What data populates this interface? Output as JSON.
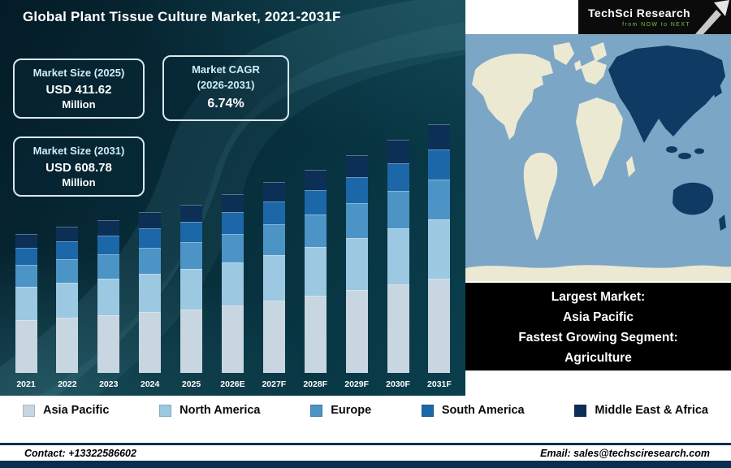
{
  "page_title": "Global Plant Tissue Culture Market, 2021-2031F",
  "logo": {
    "brand": "TechSci Research",
    "tagline": "from NOW to NEXT"
  },
  "info_boxes": [
    {
      "title": "Market Size (2025)",
      "value": "USD 411.62",
      "unit": "Million"
    },
    {
      "title": "Market CAGR",
      "subtitle": "(2026-2031)",
      "value": "6.74%"
    },
    {
      "title": "Market Size (2031)",
      "value": "USD 608.78",
      "unit": "Million"
    }
  ],
  "map": {
    "ocean_color": "#7ca6c6",
    "land_color": "#ece9d3",
    "highlight_color": "#0e3a63"
  },
  "map_note": {
    "lines": [
      "Largest Market:",
      "Asia Pacific",
      "Fastest Growing Segment:",
      "Agriculture"
    ]
  },
  "footer": {
    "contact": "Contact: +13322586602",
    "email": "Email: sales@techsciresearch.com",
    "bar_color": "#0a2e52"
  },
  "chart_data": {
    "type": "bar",
    "stacked": true,
    "title": "Global Plant Tissue Culture Market, 2021-2031F",
    "unit": "USD Million",
    "categories": [
      "2021",
      "2022",
      "2023",
      "2024",
      "2025",
      "2026E",
      "2027F",
      "2028F",
      "2029F",
      "2030F",
      "2031F"
    ],
    "totals": [
      340,
      356,
      372,
      392,
      411.62,
      438,
      468,
      500,
      534,
      570,
      608.78
    ],
    "series": [
      {
        "name": "Asia Pacific",
        "color": "#c7d6e0",
        "values": [
          129,
          135,
          141,
          149,
          156,
          166,
          178,
          190,
          203,
          217,
          231
        ]
      },
      {
        "name": "North America",
        "color": "#9cc8e2",
        "values": [
          82,
          85,
          89,
          94,
          99,
          105,
          112,
          120,
          128,
          137,
          146
        ]
      },
      {
        "name": "Europe",
        "color": "#4d94c6",
        "values": [
          54,
          57,
          60,
          63,
          66,
          70,
          75,
          80,
          85,
          91,
          97
        ]
      },
      {
        "name": "South America",
        "color": "#1c67a8",
        "values": [
          41,
          43,
          45,
          47,
          49,
          53,
          56,
          60,
          64,
          68,
          73
        ]
      },
      {
        "name": "Middle East & Africa",
        "color": "#0c2f55",
        "values": [
          34,
          36,
          37,
          39,
          41,
          44,
          47,
          50,
          53,
          57,
          61
        ]
      }
    ],
    "legend_position": "bottom",
    "y_axis_visible": false
  }
}
